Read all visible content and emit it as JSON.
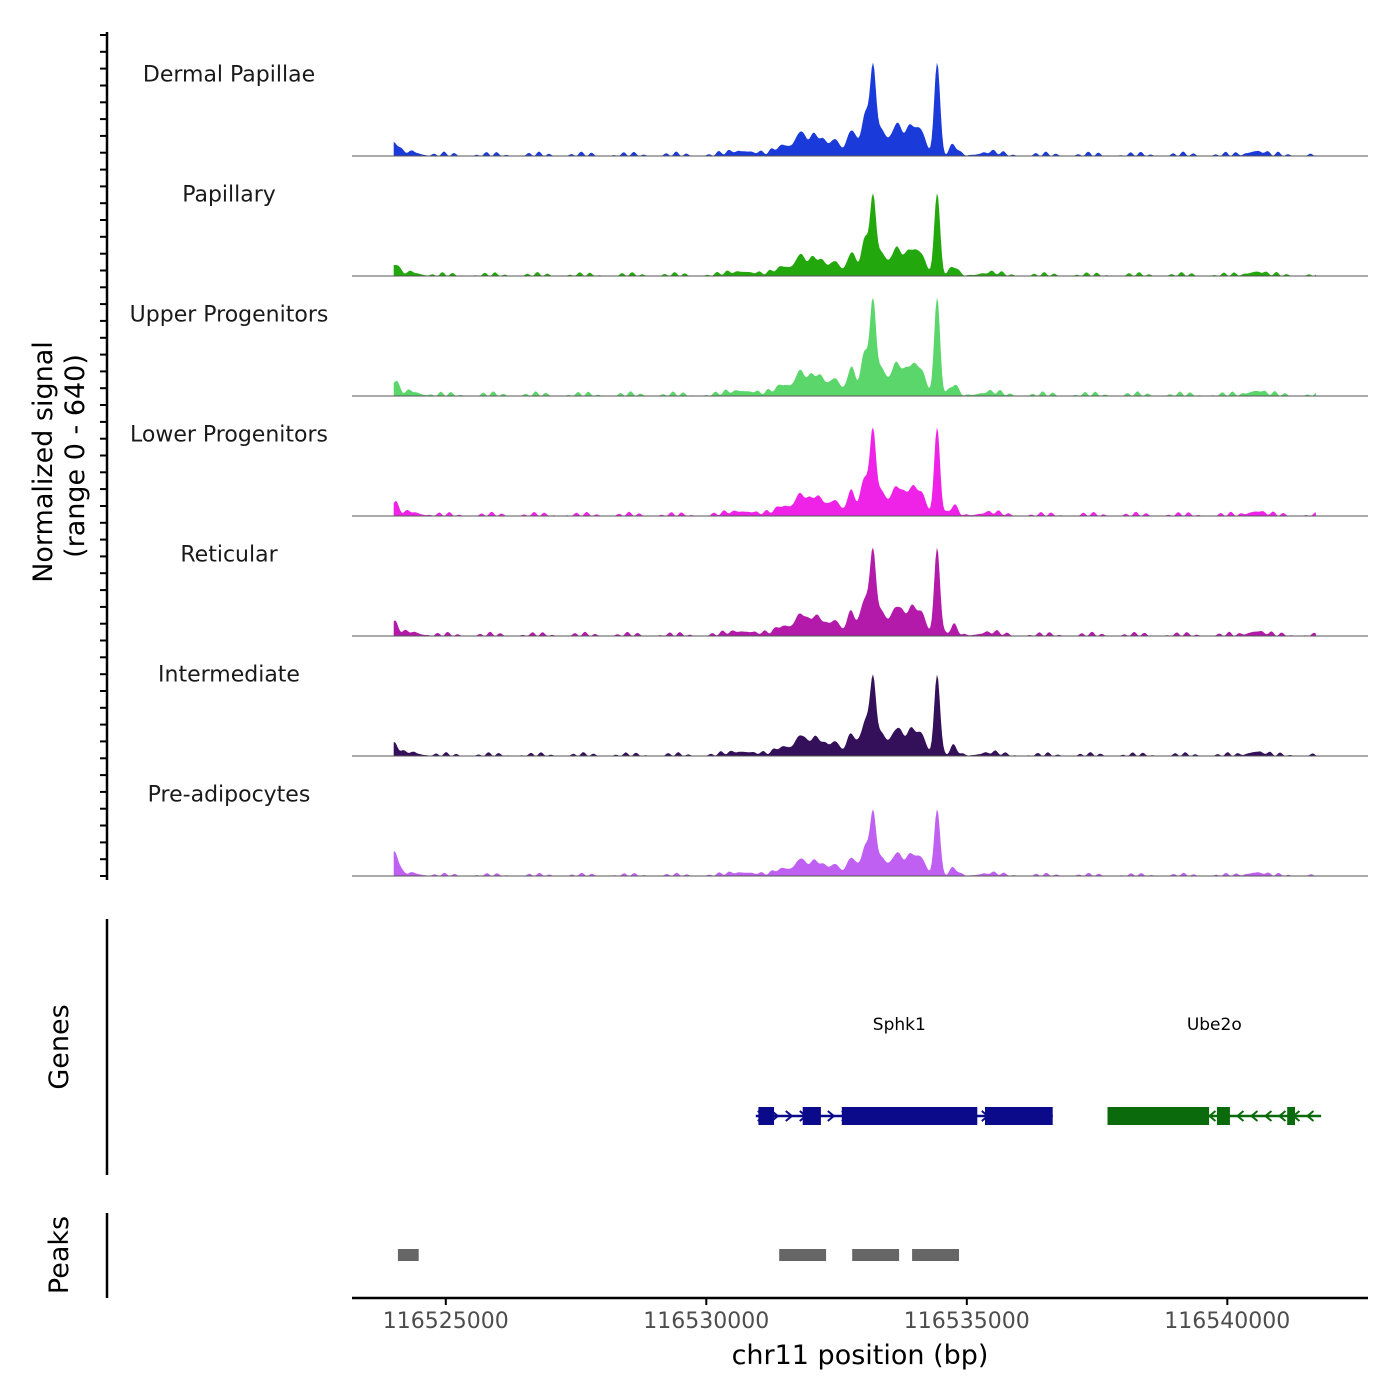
{
  "chart_data": {
    "type": "area",
    "title": "",
    "ylabel": "Normalized signal",
    "ylabel_range": "(range 0 - 640)",
    "ylim": [
      0,
      640
    ],
    "xlabel": "chr11 position (bp)",
    "xlim": [
      116523200,
      116542700
    ],
    "x_ticks": [
      116525000,
      116530000,
      116535000,
      116540000
    ],
    "x_tick_labels": [
      "116525000",
      "116530000",
      "116535000",
      "116540000"
    ],
    "tracks": [
      {
        "name": "Dermal Papillae",
        "color": "#1a3bd9",
        "scale": 0.95
      },
      {
        "name": "Papillary",
        "color": "#22a80c",
        "scale": 0.84
      },
      {
        "name": "Upper Progenitors",
        "color": "#5ad66a",
        "scale": 1.0
      },
      {
        "name": "Lower Progenitors",
        "color": "#ef22e8",
        "scale": 0.9
      },
      {
        "name": "Reticular",
        "color": "#b31aaa",
        "scale": 0.9
      },
      {
        "name": "Intermediate",
        "color": "#34105a",
        "scale": 0.83
      },
      {
        "name": "Pre-adipocytes",
        "color": "#c060f2",
        "scale": 0.68
      }
    ],
    "profile_peaks": [
      {
        "pos": 116524020,
        "height": 0.13,
        "width": 70
      },
      {
        "pos": 116524350,
        "height": 0.04,
        "width": 150
      },
      {
        "pos": 116530700,
        "height": 0.05,
        "width": 250
      },
      {
        "pos": 116531500,
        "height": 0.11,
        "width": 160
      },
      {
        "pos": 116531800,
        "height": 0.22,
        "width": 90
      },
      {
        "pos": 116532050,
        "height": 0.18,
        "width": 110
      },
      {
        "pos": 116532250,
        "height": 0.12,
        "width": 100
      },
      {
        "pos": 116532480,
        "height": 0.17,
        "width": 90
      },
      {
        "pos": 116532780,
        "height": 0.27,
        "width": 80
      },
      {
        "pos": 116533050,
        "height": 0.42,
        "width": 80
      },
      {
        "pos": 116533200,
        "height": 0.86,
        "width": 55
      },
      {
        "pos": 116533350,
        "height": 0.28,
        "width": 90
      },
      {
        "pos": 116533650,
        "height": 0.32,
        "width": 110
      },
      {
        "pos": 116533950,
        "height": 0.3,
        "width": 110
      },
      {
        "pos": 116534150,
        "height": 0.2,
        "width": 80
      },
      {
        "pos": 116534430,
        "height": 1.0,
        "width": 55
      },
      {
        "pos": 116534750,
        "height": 0.1,
        "width": 70
      },
      {
        "pos": 116535400,
        "height": 0.03,
        "width": 200
      },
      {
        "pos": 116540550,
        "height": 0.05,
        "width": 150
      }
    ],
    "genes": [
      {
        "name": "Sphk1",
        "start": 116530950,
        "end": 116536650,
        "strand": "+",
        "color": "#0a0a8a",
        "exons": [
          [
            116531000,
            116531300
          ],
          [
            116531850,
            116532200
          ],
          [
            116532600,
            116535200
          ],
          [
            116535350,
            116536650
          ]
        ]
      },
      {
        "name": "Ube2o",
        "start": 116537700,
        "end": 116541800,
        "strand": "-",
        "color": "#0b6a0b",
        "exons": [
          [
            116537700,
            116539650
          ],
          [
            116539800,
            116540050
          ],
          [
            116541150,
            116541300
          ]
        ]
      }
    ],
    "peaks": [
      [
        116524080,
        116524480
      ],
      [
        116531400,
        116532300
      ],
      [
        116532800,
        116533700
      ],
      [
        116533950,
        116534850
      ]
    ],
    "panel_labels": {
      "genes": "Genes",
      "peaks": "Peaks"
    }
  }
}
